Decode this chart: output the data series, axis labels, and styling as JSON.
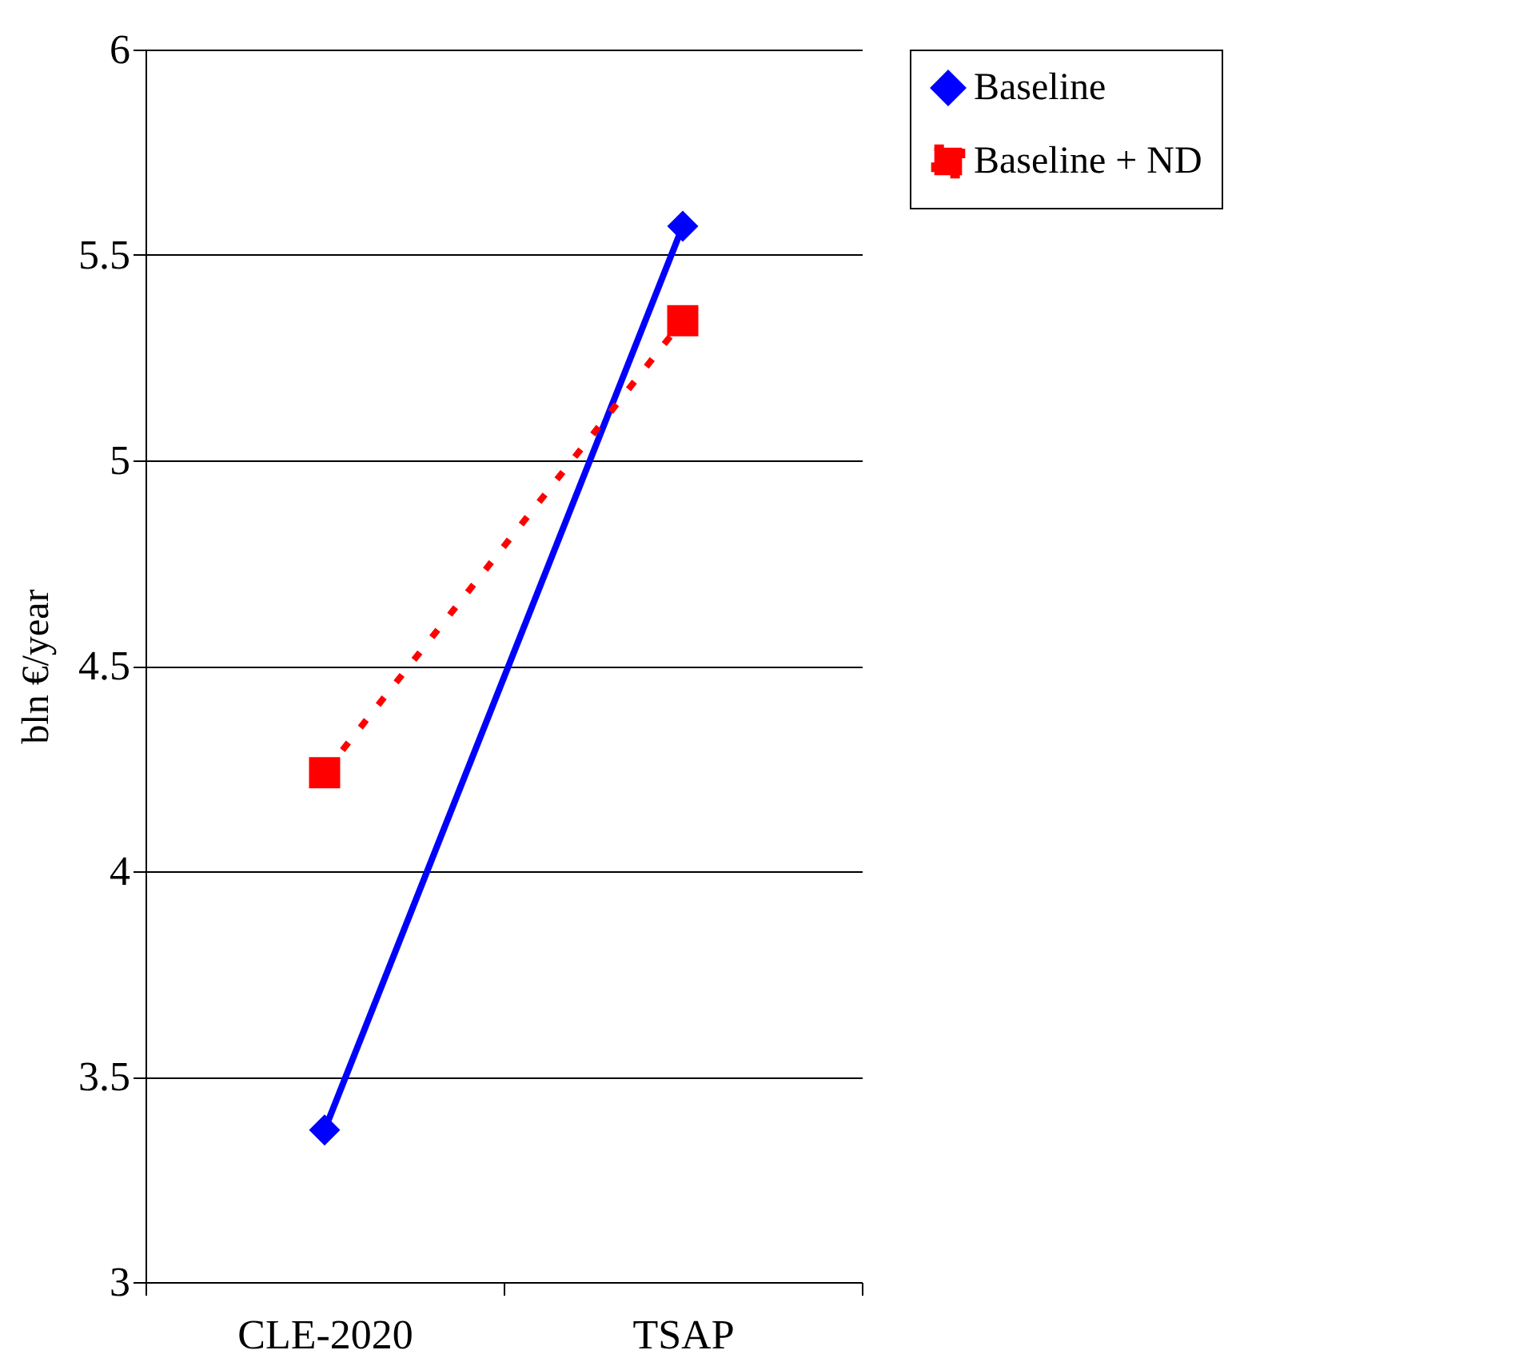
{
  "chart_data": {
    "type": "line",
    "ylabel": "bln €/year",
    "categories": [
      "CLE-2020",
      "TSAP"
    ],
    "series": [
      {
        "name": "Baseline",
        "color": "#0000ff",
        "values": [
          3.37,
          5.57
        ],
        "marker": "diamond",
        "line_style": "solid"
      },
      {
        "name": "Baseline + ND",
        "color": "#ff0000",
        "values": [
          4.24,
          5.34
        ],
        "marker": "square",
        "line_style": "dotted"
      }
    ],
    "ylim": [
      3,
      6
    ],
    "yticks": [
      3,
      3.5,
      4,
      4.5,
      5,
      5.5,
      6
    ],
    "grid": "y",
    "legend": "right"
  }
}
